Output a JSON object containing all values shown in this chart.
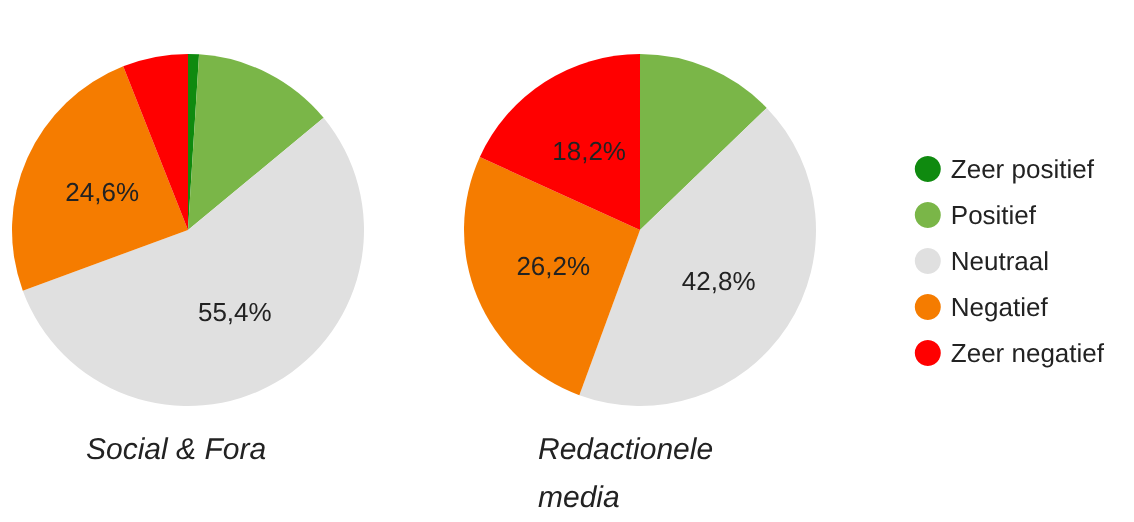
{
  "chart_data": {
    "type": "pie",
    "categories": [
      "Zeer positief",
      "Positief",
      "Neutraal",
      "Negatief",
      "Zeer negatief"
    ],
    "colors": [
      "#0f8a0f",
      "#7ab648",
      "#e0e0e0",
      "#f57c00",
      "#ff0000"
    ],
    "legend": "right",
    "series": [
      {
        "name": "Social & Fora",
        "values": [
          1,
          13,
          55.4,
          24.6,
          6
        ],
        "value_labels": [
          null,
          null,
          "55,4%",
          "24,6%",
          null
        ]
      },
      {
        "name": "Redactionele media",
        "values": [
          0,
          12.8,
          42.8,
          26.2,
          18.2
        ],
        "value_labels": [
          null,
          null,
          "42,8%",
          "26,2%",
          "18,2%"
        ]
      }
    ]
  }
}
